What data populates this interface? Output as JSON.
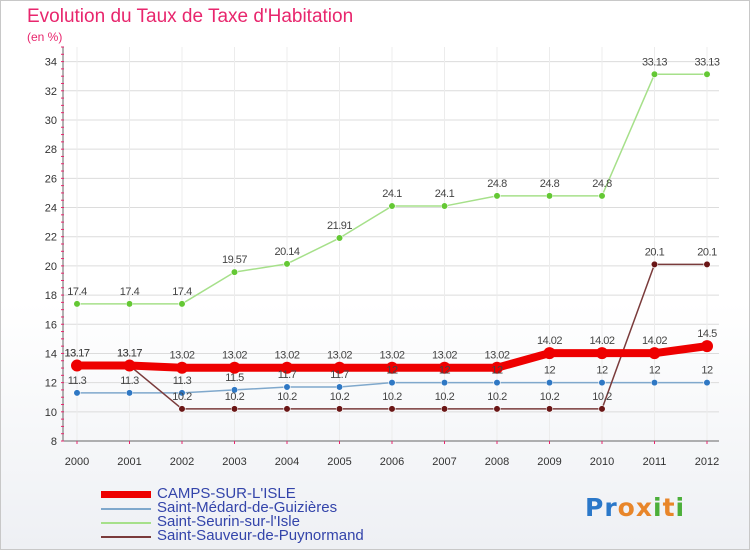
{
  "title": "Evolution du Taux de Taxe d'Habitation",
  "unit": "(en %)",
  "logo": {
    "text": "Proxiti",
    "colors": [
      "#2b78c9",
      "#2b78c9",
      "#e8862a",
      "#e8862a",
      "#4caf3a",
      "#e8862a",
      "#4caf3a"
    ]
  },
  "chart_data": {
    "type": "line",
    "title": "Evolution du Taux de Taxe d'Habitation",
    "ylabel": "(en %)",
    "xlabel": "",
    "x": [
      "2000",
      "2001",
      "2002",
      "2003",
      "2004",
      "2005",
      "2006",
      "2007",
      "2008",
      "2009",
      "2010",
      "2011",
      "2012"
    ],
    "ylim": [
      8,
      35
    ],
    "yticks": [
      8,
      10,
      12,
      14,
      16,
      18,
      20,
      22,
      24,
      26,
      28,
      30,
      32,
      34
    ],
    "grid": true,
    "legend_position": "bottom-left",
    "series": [
      {
        "name": "CAMPS-SUR-L'ISLE",
        "color": "#ee0000",
        "marker": "#ee0000",
        "thick": true,
        "values": [
          13.17,
          13.17,
          13.02,
          13.02,
          13.02,
          13.02,
          13.02,
          13.02,
          13.02,
          14.02,
          14.02,
          14.02,
          14.5
        ],
        "labels": [
          "13.17",
          "13.17",
          "13.02",
          "13.02",
          "13.02",
          "13.02",
          "13.02",
          "13.02",
          "13.02",
          "14.02",
          "14.02",
          "14.02",
          "14.5"
        ]
      },
      {
        "name": "Saint-Médard-de-Guizières",
        "color": "#7fa8cc",
        "marker": "#2f78c4",
        "thick": false,
        "values": [
          11.3,
          11.3,
          11.3,
          11.5,
          11.7,
          11.7,
          12,
          12,
          12,
          12,
          12,
          12,
          12
        ],
        "labels": [
          "11.3",
          "11.3",
          "11.3",
          "11.5",
          "11.7",
          "11.7",
          "12",
          "12",
          "12",
          "12",
          "12",
          "12",
          "12"
        ]
      },
      {
        "name": "Saint-Seurin-sur-l'Isle",
        "color": "#a6e08a",
        "marker": "#64c834",
        "thick": false,
        "values": [
          17.4,
          17.4,
          17.4,
          19.57,
          20.14,
          21.91,
          24.1,
          24.1,
          24.8,
          24.8,
          24.8,
          33.13,
          33.13
        ],
        "labels": [
          "17.4",
          "17.4",
          "17.4",
          "19.57",
          "20.14",
          "21.91",
          "24.1",
          "24.1",
          "24.8",
          "24.8",
          "24.8",
          "33.13",
          "33.13"
        ]
      },
      {
        "name": "Saint-Sauveur-de-Puynormand",
        "color": "#7a3b3b",
        "marker": "#6a1616",
        "thick": false,
        "values": [
          13.17,
          13.17,
          10.2,
          10.2,
          10.2,
          10.2,
          10.2,
          10.2,
          10.2,
          10.2,
          10.2,
          20.1,
          20.1
        ],
        "labels": [
          "13.17",
          "13.17",
          "10.2",
          "10.2",
          "10.2",
          "10.2",
          "10.2",
          "10.2",
          "10.2",
          "10.2",
          "10.2",
          "20.1",
          "20.1"
        ]
      }
    ]
  }
}
